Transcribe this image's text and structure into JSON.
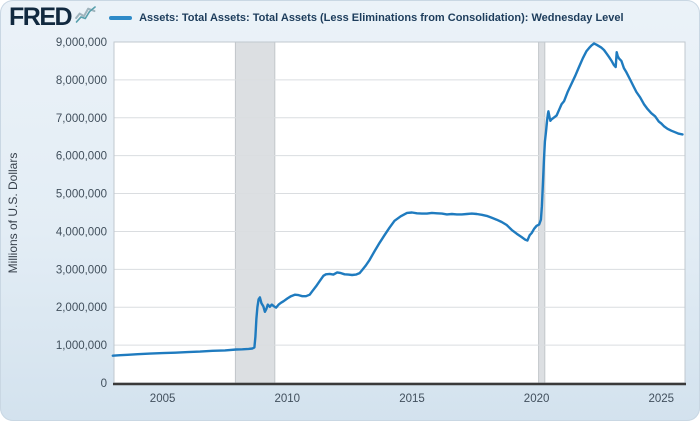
{
  "header": {
    "logo_text": "FRED",
    "series_title": "Assets: Total Assets: Total Assets (Less Eliminations from Consolidation): Wednesday Level"
  },
  "colors": {
    "series_line": "#1f7bbf",
    "legend_dash": "#2e8ac8",
    "plot_bg": "#ffffff",
    "plot_border": "#c0c8cf",
    "grid": "#dadde0",
    "axis": "#3a3a3a",
    "recession": "#dcdfe2",
    "recession_edge": "#c2c6ca",
    "canvas_bg": "#e0eaf3",
    "tick_text": "#414f5c",
    "logo_text": "#11293f"
  },
  "chart_data": {
    "type": "line",
    "title": "Assets: Total Assets: Total Assets (Less Eliminations from Consolidation): Wednesday Level",
    "xlabel": "",
    "ylabel": "Millions of U.S. Dollars",
    "ylim": [
      0,
      9000000
    ],
    "xlim": [
      2003.05,
      2025.95
    ],
    "grid": true,
    "legend_position": "top",
    "x_ticks": [
      {
        "value": 2005,
        "label": "2005"
      },
      {
        "value": 2010,
        "label": "2010"
      },
      {
        "value": 2015,
        "label": "2015"
      },
      {
        "value": 2020,
        "label": "2020"
      },
      {
        "value": 2025,
        "label": "2025"
      }
    ],
    "y_ticks": [
      {
        "value": 0,
        "label": "0"
      },
      {
        "value": 1000000,
        "label": "1,000,000"
      },
      {
        "value": 2000000,
        "label": "2,000,000"
      },
      {
        "value": 3000000,
        "label": "3,000,000"
      },
      {
        "value": 4000000,
        "label": "4,000,000"
      },
      {
        "value": 5000000,
        "label": "5,000,000"
      },
      {
        "value": 6000000,
        "label": "6,000,000"
      },
      {
        "value": 7000000,
        "label": "7,000,000"
      },
      {
        "value": 8000000,
        "label": "8,000,000"
      },
      {
        "value": 9000000,
        "label": "9,000,000"
      }
    ],
    "recessions": [
      {
        "start": 2007.92,
        "end": 2009.5
      },
      {
        "start": 2020.08,
        "end": 2020.33
      }
    ],
    "series": [
      {
        "name": "Assets: Total Assets: Total Assets (Less Eliminations from Consolidation): Wednesday Level",
        "color": "#1f7bbf",
        "points": [
          [
            2003.0,
            720000
          ],
          [
            2003.3,
            735000
          ],
          [
            2003.6,
            745000
          ],
          [
            2004.0,
            760000
          ],
          [
            2004.5,
            775000
          ],
          [
            2005.0,
            790000
          ],
          [
            2005.5,
            800000
          ],
          [
            2006.0,
            815000
          ],
          [
            2006.5,
            830000
          ],
          [
            2007.0,
            850000
          ],
          [
            2007.5,
            860000
          ],
          [
            2007.95,
            885000
          ],
          [
            2008.2,
            890000
          ],
          [
            2008.45,
            900000
          ],
          [
            2008.6,
            910000
          ],
          [
            2008.68,
            940000
          ],
          [
            2008.72,
            1220000
          ],
          [
            2008.76,
            1700000
          ],
          [
            2008.8,
            2000000
          ],
          [
            2008.85,
            2210000
          ],
          [
            2008.9,
            2260000
          ],
          [
            2008.96,
            2110000
          ],
          [
            2009.04,
            2020000
          ],
          [
            2009.1,
            1880000
          ],
          [
            2009.16,
            1950000
          ],
          [
            2009.22,
            2070000
          ],
          [
            2009.3,
            2010000
          ],
          [
            2009.38,
            2070000
          ],
          [
            2009.45,
            2030000
          ],
          [
            2009.55,
            1990000
          ],
          [
            2009.65,
            2070000
          ],
          [
            2009.75,
            2120000
          ],
          [
            2009.85,
            2160000
          ],
          [
            2010.0,
            2230000
          ],
          [
            2010.15,
            2290000
          ],
          [
            2010.3,
            2330000
          ],
          [
            2010.45,
            2320000
          ],
          [
            2010.6,
            2290000
          ],
          [
            2010.75,
            2290000
          ],
          [
            2010.9,
            2330000
          ],
          [
            2011.0,
            2420000
          ],
          [
            2011.15,
            2550000
          ],
          [
            2011.3,
            2690000
          ],
          [
            2011.45,
            2830000
          ],
          [
            2011.55,
            2870000
          ],
          [
            2011.7,
            2880000
          ],
          [
            2011.85,
            2860000
          ],
          [
            2012.0,
            2920000
          ],
          [
            2012.15,
            2900000
          ],
          [
            2012.3,
            2870000
          ],
          [
            2012.45,
            2860000
          ],
          [
            2012.6,
            2850000
          ],
          [
            2012.75,
            2860000
          ],
          [
            2012.9,
            2900000
          ],
          [
            2013.0,
            2980000
          ],
          [
            2013.15,
            3100000
          ],
          [
            2013.3,
            3250000
          ],
          [
            2013.5,
            3480000
          ],
          [
            2013.7,
            3700000
          ],
          [
            2013.9,
            3900000
          ],
          [
            2014.1,
            4100000
          ],
          [
            2014.3,
            4280000
          ],
          [
            2014.55,
            4400000
          ],
          [
            2014.8,
            4490000
          ],
          [
            2015.0,
            4500000
          ],
          [
            2015.2,
            4480000
          ],
          [
            2015.4,
            4470000
          ],
          [
            2015.6,
            4470000
          ],
          [
            2015.8,
            4490000
          ],
          [
            2016.0,
            4480000
          ],
          [
            2016.2,
            4470000
          ],
          [
            2016.4,
            4450000
          ],
          [
            2016.6,
            4460000
          ],
          [
            2016.8,
            4450000
          ],
          [
            2017.0,
            4450000
          ],
          [
            2017.2,
            4460000
          ],
          [
            2017.4,
            4470000
          ],
          [
            2017.6,
            4460000
          ],
          [
            2017.8,
            4440000
          ],
          [
            2018.0,
            4410000
          ],
          [
            2018.2,
            4360000
          ],
          [
            2018.4,
            4310000
          ],
          [
            2018.6,
            4250000
          ],
          [
            2018.8,
            4170000
          ],
          [
            2019.0,
            4040000
          ],
          [
            2019.2,
            3940000
          ],
          [
            2019.4,
            3850000
          ],
          [
            2019.55,
            3780000
          ],
          [
            2019.63,
            3760000
          ],
          [
            2019.72,
            3900000
          ],
          [
            2019.8,
            3960000
          ],
          [
            2019.9,
            4070000
          ],
          [
            2020.0,
            4150000
          ],
          [
            2020.1,
            4180000
          ],
          [
            2020.17,
            4310000
          ],
          [
            2020.21,
            4670000
          ],
          [
            2020.25,
            5250000
          ],
          [
            2020.29,
            5860000
          ],
          [
            2020.33,
            6370000
          ],
          [
            2020.38,
            6660000
          ],
          [
            2020.42,
            6930000
          ],
          [
            2020.45,
            7100000
          ],
          [
            2020.47,
            7170000
          ],
          [
            2020.52,
            7010000
          ],
          [
            2020.55,
            6920000
          ],
          [
            2020.6,
            6960000
          ],
          [
            2020.7,
            7010000
          ],
          [
            2020.8,
            7060000
          ],
          [
            2020.9,
            7210000
          ],
          [
            2021.0,
            7360000
          ],
          [
            2021.1,
            7440000
          ],
          [
            2021.25,
            7690000
          ],
          [
            2021.4,
            7900000
          ],
          [
            2021.55,
            8110000
          ],
          [
            2021.7,
            8340000
          ],
          [
            2021.85,
            8570000
          ],
          [
            2022.0,
            8760000
          ],
          [
            2022.1,
            8840000
          ],
          [
            2022.2,
            8910000
          ],
          [
            2022.3,
            8960000
          ],
          [
            2022.4,
            8930000
          ],
          [
            2022.5,
            8890000
          ],
          [
            2022.6,
            8850000
          ],
          [
            2022.7,
            8790000
          ],
          [
            2022.8,
            8700000
          ],
          [
            2022.9,
            8610000
          ],
          [
            2023.0,
            8510000
          ],
          [
            2023.1,
            8390000
          ],
          [
            2023.17,
            8340000
          ],
          [
            2023.21,
            8730000
          ],
          [
            2023.25,
            8630000
          ],
          [
            2023.3,
            8570000
          ],
          [
            2023.4,
            8500000
          ],
          [
            2023.5,
            8310000
          ],
          [
            2023.6,
            8200000
          ],
          [
            2023.75,
            8010000
          ],
          [
            2023.9,
            7810000
          ],
          [
            2024.0,
            7680000
          ],
          [
            2024.15,
            7540000
          ],
          [
            2024.3,
            7360000
          ],
          [
            2024.45,
            7230000
          ],
          [
            2024.6,
            7120000
          ],
          [
            2024.75,
            7040000
          ],
          [
            2024.9,
            6900000
          ],
          [
            2025.0,
            6850000
          ],
          [
            2025.1,
            6780000
          ],
          [
            2025.25,
            6710000
          ],
          [
            2025.4,
            6660000
          ],
          [
            2025.55,
            6620000
          ],
          [
            2025.7,
            6580000
          ],
          [
            2025.85,
            6560000
          ]
        ]
      }
    ]
  }
}
